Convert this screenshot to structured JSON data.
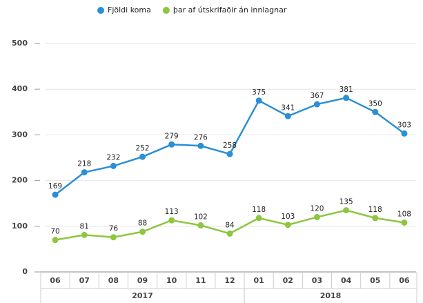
{
  "chart_data": {
    "type": "line",
    "categories": [
      "06",
      "07",
      "08",
      "09",
      "10",
      "11",
      "12",
      "01",
      "02",
      "03",
      "04",
      "05",
      "06"
    ],
    "x_groups": [
      {
        "label": "2017",
        "span": 7
      },
      {
        "label": "2018",
        "span": 6
      }
    ],
    "series": [
      {
        "name": "Fjöldi koma",
        "color": "#2a8fd6",
        "values": [
          169,
          218,
          232,
          252,
          279,
          276,
          258,
          375,
          341,
          367,
          381,
          350,
          303
        ]
      },
      {
        "name": "þar af útskrifaðir án innlagnar",
        "color": "#8dc63f",
        "values": [
          70,
          81,
          76,
          88,
          113,
          102,
          84,
          118,
          103,
          120,
          135,
          118,
          108
        ]
      }
    ],
    "ylim": [
      0,
      500
    ],
    "yticks": [
      0,
      100,
      200,
      300,
      400,
      500
    ],
    "grid": true,
    "legend": "top"
  }
}
